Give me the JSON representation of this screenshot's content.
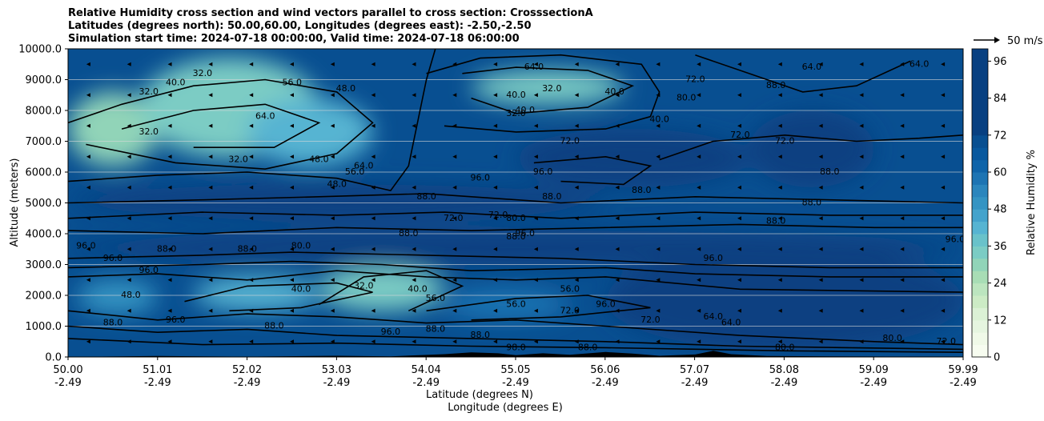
{
  "title_lines": [
    "Relative Humidity cross section and wind vectors parallel to cross section: CrosssectionA",
    "Latitudes (degrees north): 50.00,60.00, Longitudes (degrees east): -2.50,-2.50",
    "Simulation start time: 2024-07-18 00:00:00, Valid time: 2024-07-18 06:00:00"
  ],
  "chart_data": {
    "type": "heatmap",
    "ylabel": "Altitude (meters)",
    "xlabel_line1": "Latitude (degrees N)",
    "xlabel_line2": "Longitude (degrees E)",
    "ylim": [
      0,
      10000
    ],
    "y_ticks": [
      0,
      1000,
      2000,
      3000,
      4000,
      5000,
      6000,
      7000,
      8000,
      9000,
      10000
    ],
    "y_tick_labels": [
      "0.0",
      "1000.0",
      "2000.0",
      "3000.0",
      "4000.0",
      "5000.0",
      "6000.0",
      "7000.0",
      "8000.0",
      "9000.0",
      "10000.0"
    ],
    "x_ticks_lat": [
      "50.00",
      "51.01",
      "52.02",
      "53.03",
      "54.04",
      "55.05",
      "56.06",
      "57.07",
      "58.08",
      "59.09",
      "59.99"
    ],
    "x_ticks_lon": [
      "-2.49",
      "-2.49",
      "-2.49",
      "-2.49",
      "-2.49",
      "-2.49",
      "-2.49",
      "-2.49",
      "-2.49",
      "-2.49",
      "-2.49"
    ],
    "grid": "horizontal",
    "colorbar": {
      "label": "Relative Humidity %",
      "min": 0,
      "max": 100,
      "step": 4,
      "tick_values": [
        0,
        12,
        24,
        36,
        48,
        60,
        72,
        84,
        96
      ],
      "colors": [
        "#f7fcf0",
        "#f0f9e8",
        "#e6f5e0",
        "#dbf1d5",
        "#ccebc5",
        "#bce5bf",
        "#a8ddb5",
        "#91d4b8",
        "#7bccc4",
        "#69c2ca",
        "#56b4d2",
        "#44a3cc",
        "#3494c3",
        "#2b86bd",
        "#1d74b3",
        "#0f64a9",
        "#08589e",
        "#084f91",
        "#084081"
      ]
    },
    "wind_reference_label": "50 m/s",
    "regions": [
      {
        "x": [
          50.0,
          51.0
        ],
        "y": [
          6200,
          8600
        ],
        "rh": 28
      },
      {
        "x": [
          50.8,
          52.8
        ],
        "y": [
          6500,
          9700
        ],
        "rh": 32
      },
      {
        "x": [
          52.0,
          53.4
        ],
        "y": [
          6200,
          8400
        ],
        "rh": 40
      },
      {
        "x": [
          54.5,
          56.2
        ],
        "y": [
          8200,
          9300
        ],
        "rh": 32
      },
      {
        "x": [
          51.4,
          52.8
        ],
        "y": [
          1500,
          2600
        ],
        "rh": 40
      },
      {
        "x": [
          52.8,
          54.2
        ],
        "y": [
          1500,
          2900
        ],
        "rh": 32
      },
      {
        "x": [
          50.1,
          51.0
        ],
        "y": [
          1400,
          2500
        ],
        "rh": 48
      },
      {
        "x": [
          54.2,
          55.6
        ],
        "y": [
          1200,
          2200
        ],
        "rh": 56
      },
      {
        "x": [
          55.0,
          57.6
        ],
        "y": [
          5500,
          7400
        ],
        "rh": 96
      },
      {
        "x": [
          56.0,
          59.99
        ],
        "y": [
          200,
          3500
        ],
        "rh": 96
      },
      {
        "x": [
          50.0,
          59.99
        ],
        "y": [
          3000,
          4100
        ],
        "rh": 96
      },
      {
        "x": [
          57.6,
          59.0
        ],
        "y": [
          5500,
          8000
        ],
        "rh": 84
      },
      {
        "x": [
          50.0,
          56.0
        ],
        "y": [
          4500,
          5600
        ],
        "rh": 88
      }
    ],
    "contour_labels": [
      {
        "lat": 50.9,
        "alt": 8600,
        "text": "32.0"
      },
      {
        "lat": 51.5,
        "alt": 9200,
        "text": "32.0"
      },
      {
        "lat": 51.9,
        "alt": 6400,
        "text": "32.0"
      },
      {
        "lat": 50.9,
        "alt": 7300,
        "text": "32.0"
      },
      {
        "lat": 52.8,
        "alt": 6400,
        "text": "48.0"
      },
      {
        "lat": 53.0,
        "alt": 5600,
        "text": "48.0"
      },
      {
        "lat": 53.2,
        "alt": 6000,
        "text": "56.0"
      },
      {
        "lat": 53.3,
        "alt": 6200,
        "text": "64.0"
      },
      {
        "lat": 52.2,
        "alt": 7800,
        "text": "64.0"
      },
      {
        "lat": 53.1,
        "alt": 8700,
        "text": "48.0"
      },
      {
        "lat": 52.5,
        "alt": 8900,
        "text": "56.0"
      },
      {
        "lat": 51.2,
        "alt": 8900,
        "text": "40.0"
      },
      {
        "lat": 55.0,
        "alt": 8500,
        "text": "40.0"
      },
      {
        "lat": 55.4,
        "alt": 8700,
        "text": "32.0"
      },
      {
        "lat": 55.1,
        "alt": 8000,
        "text": "40.0"
      },
      {
        "lat": 55.0,
        "alt": 7900,
        "text": "32.0"
      },
      {
        "lat": 55.2,
        "alt": 9400,
        "text": "64.0"
      },
      {
        "lat": 56.1,
        "alt": 8600,
        "text": "40.0"
      },
      {
        "lat": 55.6,
        "alt": 7000,
        "text": "72.0"
      },
      {
        "lat": 55.3,
        "alt": 6000,
        "text": "96.0"
      },
      {
        "lat": 55.4,
        "alt": 5200,
        "text": "88.0"
      },
      {
        "lat": 54.6,
        "alt": 5800,
        "text": "96.0"
      },
      {
        "lat": 54.3,
        "alt": 4500,
        "text": "72.0"
      },
      {
        "lat": 54.0,
        "alt": 5200,
        "text": "88.0"
      },
      {
        "lat": 53.8,
        "alt": 4000,
        "text": "88.0"
      },
      {
        "lat": 54.8,
        "alt": 4600,
        "text": "72.0"
      },
      {
        "lat": 55.0,
        "alt": 4500,
        "text": "80.0"
      },
      {
        "lat": 55.0,
        "alt": 3900,
        "text": "88.0"
      },
      {
        "lat": 55.1,
        "alt": 4000,
        "text": "96.0"
      },
      {
        "lat": 56.4,
        "alt": 5400,
        "text": "88.0"
      },
      {
        "lat": 57.5,
        "alt": 7200,
        "text": "72.0"
      },
      {
        "lat": 58.0,
        "alt": 7000,
        "text": "72.0"
      },
      {
        "lat": 58.5,
        "alt": 6000,
        "text": "88.0"
      },
      {
        "lat": 58.3,
        "alt": 5000,
        "text": "88.0"
      },
      {
        "lat": 57.9,
        "alt": 4400,
        "text": "88.0"
      },
      {
        "lat": 59.9,
        "alt": 3800,
        "text": "96.0"
      },
      {
        "lat": 57.9,
        "alt": 8800,
        "text": "88.0"
      },
      {
        "lat": 58.3,
        "alt": 9400,
        "text": "64.0"
      },
      {
        "lat": 59.5,
        "alt": 9500,
        "text": "64.0"
      },
      {
        "lat": 56.9,
        "alt": 8400,
        "text": "80.0"
      },
      {
        "lat": 57.0,
        "alt": 9000,
        "text": "72.0"
      },
      {
        "lat": 56.6,
        "alt": 7700,
        "text": "40.0"
      },
      {
        "lat": 57.2,
        "alt": 3200,
        "text": "96.0"
      },
      {
        "lat": 52.6,
        "alt": 2200,
        "text": "40.0"
      },
      {
        "lat": 53.3,
        "alt": 2300,
        "text": "32.0"
      },
      {
        "lat": 53.9,
        "alt": 2200,
        "text": "40.0"
      },
      {
        "lat": 54.1,
        "alt": 1900,
        "text": "56.0"
      },
      {
        "lat": 55.6,
        "alt": 2200,
        "text": "56.0"
      },
      {
        "lat": 55.0,
        "alt": 1700,
        "text": "56.0"
      },
      {
        "lat": 52.6,
        "alt": 3600,
        "text": "80.0"
      },
      {
        "lat": 52.0,
        "alt": 3500,
        "text": "88.0"
      },
      {
        "lat": 51.1,
        "alt": 3500,
        "text": "88.0"
      },
      {
        "lat": 50.5,
        "alt": 3200,
        "text": "96.0"
      },
      {
        "lat": 50.2,
        "alt": 3600,
        "text": "96.0"
      },
      {
        "lat": 50.7,
        "alt": 2000,
        "text": "48.0"
      },
      {
        "lat": 50.5,
        "alt": 1100,
        "text": "88.0"
      },
      {
        "lat": 52.3,
        "alt": 1000,
        "text": "88.0"
      },
      {
        "lat": 51.2,
        "alt": 1200,
        "text": "96.0"
      },
      {
        "lat": 53.6,
        "alt": 800,
        "text": "96.0"
      },
      {
        "lat": 54.1,
        "alt": 900,
        "text": "88.0"
      },
      {
        "lat": 55.6,
        "alt": 1500,
        "text": "72.0"
      },
      {
        "lat": 56.0,
        "alt": 1700,
        "text": "96.0"
      },
      {
        "lat": 55.8,
        "alt": 300,
        "text": "88.0"
      },
      {
        "lat": 56.5,
        "alt": 1200,
        "text": "72.0"
      },
      {
        "lat": 57.2,
        "alt": 1300,
        "text": "64.0"
      },
      {
        "lat": 57.4,
        "alt": 1100,
        "text": "64.0"
      },
      {
        "lat": 58.0,
        "alt": 300,
        "text": "80.0"
      },
      {
        "lat": 59.2,
        "alt": 600,
        "text": "80.0"
      },
      {
        "lat": 59.8,
        "alt": 500,
        "text": "72.0"
      },
      {
        "lat": 55.0,
        "alt": 300,
        "text": "98.0"
      },
      {
        "lat": 54.6,
        "alt": 700,
        "text": "88.0"
      },
      {
        "lat": 50.9,
        "alt": 2800,
        "text": "96.0"
      }
    ],
    "contours": [
      [
        [
          50.0,
          2600
        ],
        [
          51.0,
          2700
        ],
        [
          52.0,
          2500
        ],
        [
          53.0,
          2800
        ],
        [
          54.0,
          2600
        ],
        [
          55.0,
          2500
        ],
        [
          56.0,
          2600
        ],
        [
          57.5,
          2200
        ],
        [
          59.99,
          2100
        ]
      ],
      [
        [
          50.0,
          2900
        ],
        [
          51.5,
          3000
        ],
        [
          52.5,
          3100
        ],
        [
          53.5,
          3000
        ],
        [
          54.5,
          2800
        ],
        [
          56.0,
          2900
        ],
        [
          57.0,
          2700
        ],
        [
          58.5,
          2600
        ],
        [
          59.99,
          2600
        ]
      ],
      [
        [
          50.0,
          3200
        ],
        [
          51.5,
          3300
        ],
        [
          52.5,
          3400
        ],
        [
          54.0,
          3300
        ],
        [
          55.5,
          3200
        ],
        [
          57.0,
          3000
        ],
        [
          58.5,
          2900
        ],
        [
          59.99,
          2900
        ]
      ],
      [
        [
          50.0,
          4100
        ],
        [
          51.5,
          4000
        ],
        [
          53.0,
          4200
        ],
        [
          54.5,
          4100
        ],
        [
          56.0,
          4200
        ],
        [
          57.5,
          4300
        ],
        [
          59.0,
          4200
        ],
        [
          59.99,
          4200
        ]
      ],
      [
        [
          50.0,
          4500
        ],
        [
          51.5,
          4700
        ],
        [
          53.0,
          4600
        ],
        [
          54.2,
          4700
        ],
        [
          55.5,
          4500
        ],
        [
          57.0,
          4700
        ],
        [
          58.5,
          4600
        ],
        [
          59.99,
          4600
        ]
      ],
      [
        [
          50.0,
          5000
        ],
        [
          51.5,
          5100
        ],
        [
          52.8,
          5200
        ],
        [
          54.0,
          5300
        ],
        [
          55.5,
          5000
        ],
        [
          57.0,
          5200
        ],
        [
          58.5,
          5100
        ],
        [
          59.99,
          5000
        ]
      ],
      [
        [
          50.0,
          1500
        ],
        [
          51.0,
          1200
        ],
        [
          52.0,
          1400
        ],
        [
          53.0,
          1300
        ],
        [
          54.0,
          1100
        ],
        [
          55.0,
          1200
        ],
        [
          56.0,
          1000
        ],
        [
          57.5,
          700
        ],
        [
          59.0,
          500
        ],
        [
          59.99,
          400
        ]
      ],
      [
        [
          50.0,
          1000
        ],
        [
          51.0,
          800
        ],
        [
          52.0,
          900
        ],
        [
          53.0,
          700
        ],
        [
          54.5,
          600
        ],
        [
          56.0,
          500
        ],
        [
          57.5,
          350
        ],
        [
          59.99,
          250
        ]
      ],
      [
        [
          50.0,
          600
        ],
        [
          51.5,
          400
        ],
        [
          53.0,
          450
        ],
        [
          54.5,
          350
        ],
        [
          56.0,
          300
        ],
        [
          58.0,
          200
        ],
        [
          59.99,
          150
        ]
      ],
      [
        [
          50.0,
          7600
        ],
        [
          50.6,
          8200
        ],
        [
          51.4,
          8800
        ],
        [
          52.2,
          9000
        ],
        [
          53.0,
          8600
        ],
        [
          53.4,
          7600
        ],
        [
          53.0,
          6600
        ],
        [
          52.2,
          6100
        ],
        [
          51.2,
          6300
        ],
        [
          50.2,
          6900
        ]
      ],
      [
        [
          50.6,
          7400
        ],
        [
          51.4,
          8000
        ],
        [
          52.2,
          8200
        ],
        [
          52.8,
          7600
        ],
        [
          52.3,
          6800
        ],
        [
          51.4,
          6800
        ]
      ],
      [
        [
          54.4,
          9200
        ],
        [
          55.0,
          9400
        ],
        [
          55.8,
          9300
        ],
        [
          56.3,
          8800
        ],
        [
          55.8,
          8100
        ],
        [
          55.0,
          7900
        ],
        [
          54.5,
          8400
        ]
      ],
      [
        [
          54.2,
          7500
        ],
        [
          55.0,
          7300
        ],
        [
          56.0,
          7400
        ],
        [
          56.5,
          7800
        ],
        [
          56.6,
          8600
        ],
        [
          56.4,
          9500
        ],
        [
          55.5,
          9800
        ],
        [
          54.6,
          9700
        ],
        [
          54.0,
          9200
        ]
      ],
      [
        [
          51.3,
          1800
        ],
        [
          52.0,
          2300
        ],
        [
          53.0,
          2400
        ],
        [
          53.4,
          2100
        ],
        [
          52.6,
          1600
        ],
        [
          51.8,
          1500
        ]
      ],
      [
        [
          52.8,
          1700
        ],
        [
          53.3,
          2600
        ],
        [
          54.0,
          2800
        ],
        [
          54.4,
          2300
        ],
        [
          53.8,
          1500
        ]
      ],
      [
        [
          54.0,
          1500
        ],
        [
          55.0,
          1900
        ],
        [
          55.8,
          2000
        ],
        [
          56.5,
          1600
        ],
        [
          55.5,
          1300
        ],
        [
          54.5,
          1200
        ]
      ],
      [
        [
          56.6,
          6400
        ],
        [
          57.2,
          7000
        ],
        [
          58.0,
          7200
        ],
        [
          58.8,
          7000
        ],
        [
          59.5,
          7100
        ],
        [
          59.99,
          7200
        ]
      ],
      [
        [
          55.2,
          6300
        ],
        [
          56.0,
          6500
        ],
        [
          56.5,
          6200
        ],
        [
          56.2,
          5600
        ],
        [
          55.5,
          5700
        ]
      ],
      [
        [
          57.0,
          9800
        ],
        [
          57.6,
          9200
        ],
        [
          58.2,
          8600
        ],
        [
          58.8,
          8800
        ],
        [
          59.4,
          9600
        ]
      ],
      [
        [
          50.0,
          5700
        ],
        [
          51.0,
          5900
        ],
        [
          52.0,
          6000
        ],
        [
          53.0,
          5800
        ],
        [
          53.6,
          5400
        ],
        [
          53.8,
          6200
        ],
        [
          54.0,
          9000
        ],
        [
          54.1,
          10000
        ]
      ]
    ]
  }
}
